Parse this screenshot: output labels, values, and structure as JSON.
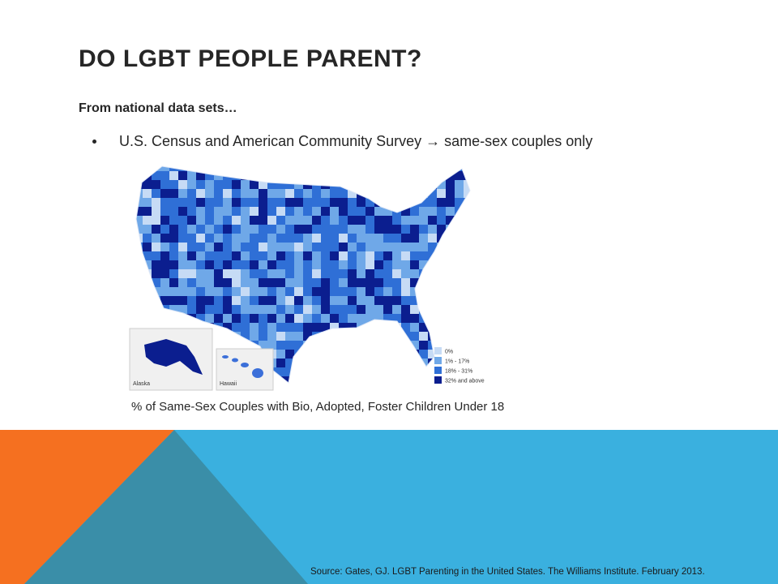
{
  "slide": {
    "title": "DO LGBT PEOPLE PARENT?",
    "subtitle": "From national data sets…",
    "bullets": [
      "U.S. Census and American Community Survey → same-sex couples only"
    ],
    "map": {
      "insets": [
        "Alaska",
        "Hawaii"
      ],
      "legend": [
        "0%",
        "1% - 17%",
        "18% - 31%",
        "32% and above"
      ],
      "caption": "% of Same-Sex Couples with Bio, Adopted, Foster Children Under 18"
    },
    "source": "Source: Gates, GJ. LGBT Parenting in the United States. The Williams Institute. February 2013."
  }
}
